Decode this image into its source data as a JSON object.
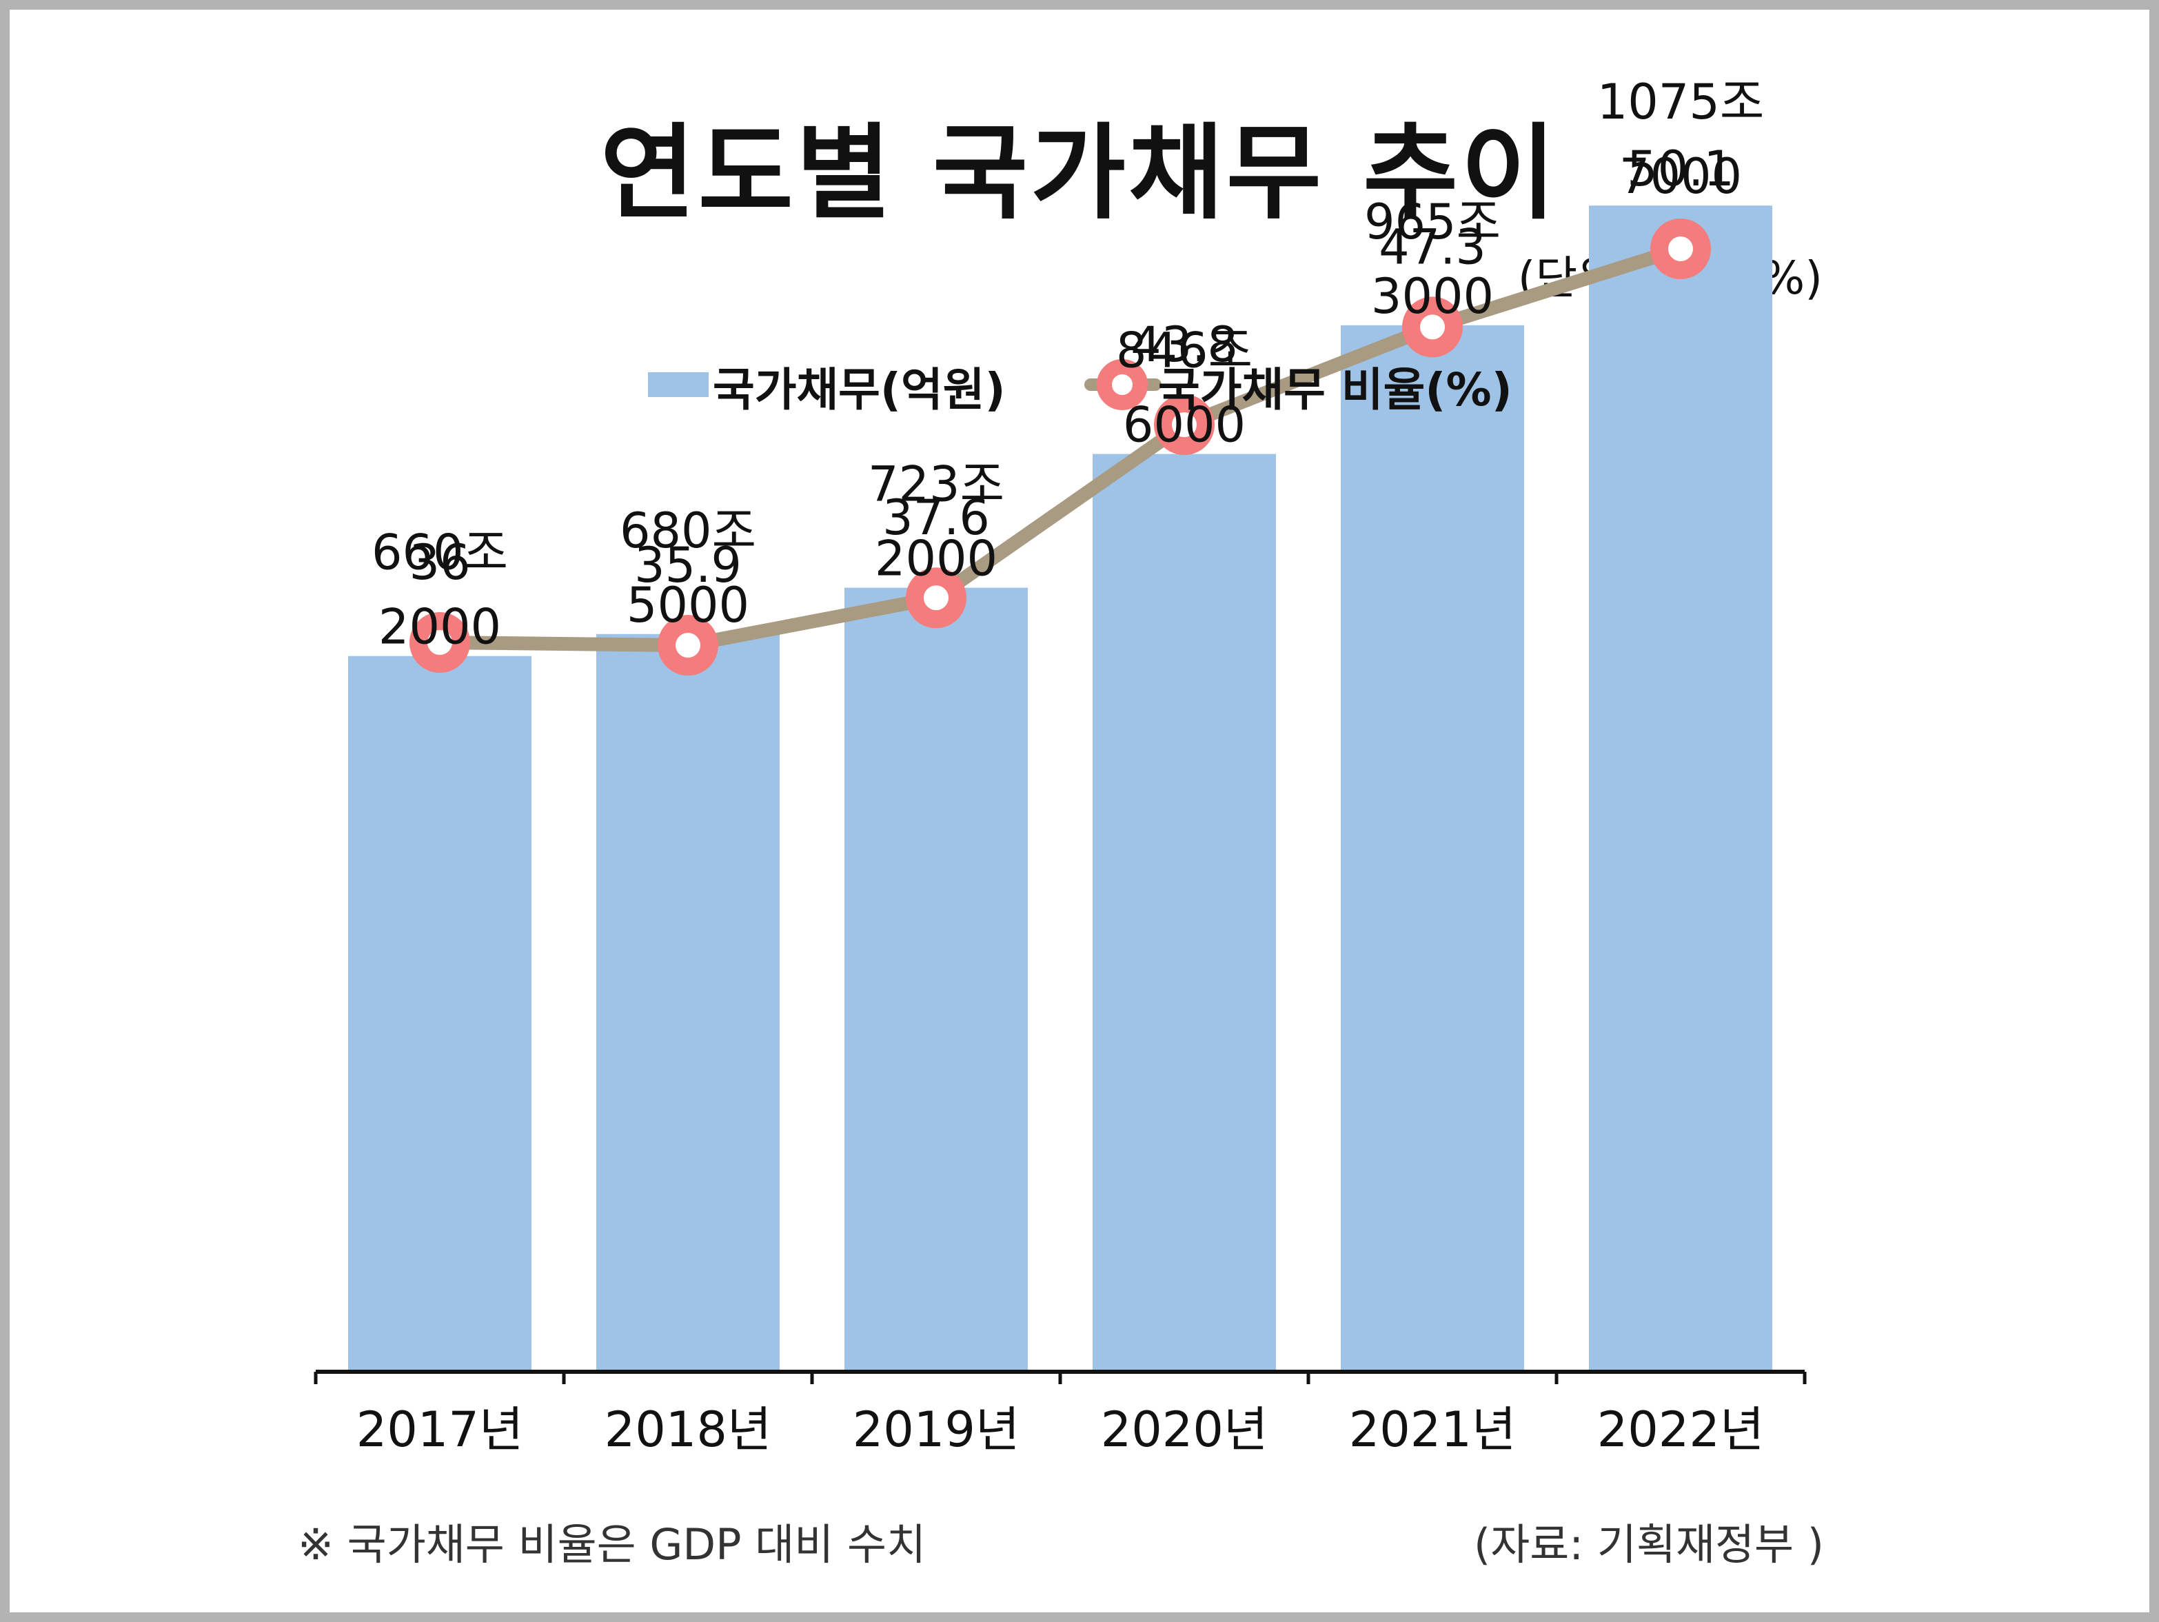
{
  "title": "연도별 국가채무 추이",
  "unit_note": "(단위: 억원, %)",
  "footnote": "※ 국가채무 비율은 GDP 대비 수치",
  "source": "(자료: 기획재정부 )",
  "legend": {
    "bar_label": "국가채무(억원)",
    "line_label": "국가채무 비율(%)"
  },
  "colors": {
    "bar": "#9fc3e6",
    "line": "#a99a82",
    "marker": "#f47c7c",
    "marker_center": "#ffffff",
    "axis": "#111111",
    "frame": "#b3b3b3"
  },
  "chart_data": {
    "type": "bar",
    "categories": [
      "2017년",
      "2018년",
      "2019년",
      "2020년",
      "2021년",
      "2022년"
    ],
    "series": [
      {
        "name": "국가채무(억원)",
        "type": "bar",
        "values": [
          6602000,
          6805000,
          7232000,
          8466000,
          9653000,
          10757000
        ],
        "labels": [
          [
            "660조",
            "2000"
          ],
          [
            "680조",
            "5000"
          ],
          [
            "723조",
            "2000"
          ],
          [
            "846조",
            "6000"
          ],
          [
            "965조",
            "3000"
          ],
          [
            "1075조",
            "7000"
          ]
        ]
      },
      {
        "name": "국가채무 비율(%)",
        "type": "line",
        "values": [
          36,
          35.9,
          37.6,
          43.8,
          47.3,
          50.1
        ],
        "labels": [
          "36",
          "35.9",
          "37.6",
          "43.8",
          "47.3",
          "50.1"
        ]
      }
    ],
    "legend_position": "top-center",
    "grid": false
  }
}
